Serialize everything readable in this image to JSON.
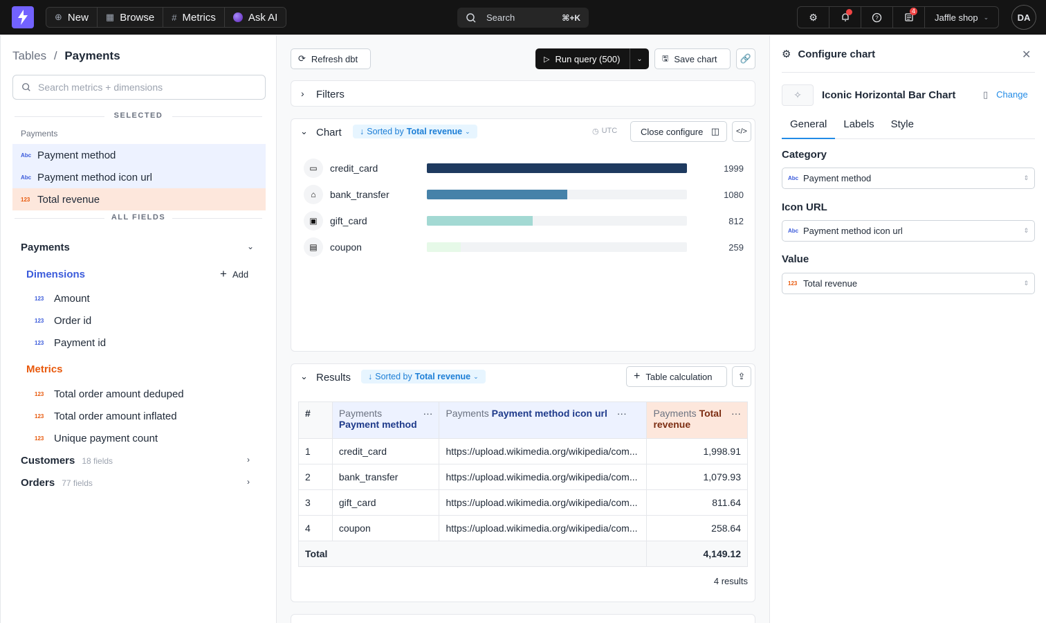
{
  "topnav": {
    "new_label": "New",
    "browse_label": "Browse",
    "metrics_label": "Metrics",
    "askai_label": "Ask AI",
    "search_placeholder": "Search",
    "search_shortcut": "⌘+K",
    "notifications_count": "4",
    "project_name": "Jaffle shop",
    "avatar_initials": "DA"
  },
  "sidebar": {
    "breadcrumb_parent": "Tables",
    "breadcrumb_sep": "/",
    "breadcrumb_current": "Payments",
    "search_placeholder": "Search metrics + dimensions",
    "selected_heading": "SELECTED",
    "selected_group": "Payments",
    "selected_items": [
      {
        "label": "Payment method",
        "type_tag": "Abc"
      },
      {
        "label": "Payment method icon url",
        "type_tag": "Abc"
      },
      {
        "label": "Total revenue",
        "type_tag": "123"
      }
    ],
    "all_fields_heading": "ALL FIELDS",
    "table_name": "Payments",
    "dimensions_heading": "Dimensions",
    "add_label": "Add",
    "dimensions": [
      "Amount",
      "Order id",
      "Payment id"
    ],
    "metrics_heading": "Metrics",
    "metrics": [
      "Total order amount deduped",
      "Total order amount inflated",
      "Unique payment count"
    ],
    "other_tables": [
      {
        "name": "Customers",
        "count": "18 fields"
      },
      {
        "name": "Orders",
        "count": "77 fields"
      }
    ]
  },
  "toolbar": {
    "refresh_label": "Refresh dbt",
    "run_label": "Run query (500)",
    "save_label": "Save chart"
  },
  "filters": {
    "title": "Filters"
  },
  "chart_card": {
    "title": "Chart",
    "sort_prefix": "Sorted by",
    "sort_field": "Total revenue",
    "timezone": "UTC",
    "close_configure_label": "Close configure"
  },
  "chart_data": {
    "type": "bar",
    "orientation": "horizontal",
    "categories": [
      "credit_card",
      "bank_transfer",
      "gift_card",
      "coupon"
    ],
    "values": [
      1999,
      1080,
      812,
      259
    ],
    "value_labels": [
      "1999",
      "1080",
      "812",
      "259"
    ],
    "xlim": [
      0,
      1999
    ],
    "colors": [
      "#1e3a5f",
      "#4682a9",
      "#a3d9d3",
      "#e6f9e8"
    ],
    "grid": false
  },
  "results": {
    "title": "Results",
    "sort_prefix": "Sorted by",
    "sort_field": "Total revenue",
    "table_calc_label": "Table calculation",
    "columns": [
      {
        "group": "#",
        "name": ""
      },
      {
        "group": "Payments",
        "name": "Payment method"
      },
      {
        "group": "Payments",
        "name": "Payment method icon url"
      },
      {
        "group": "Payments",
        "name": "Total revenue"
      }
    ],
    "rows": [
      {
        "idx": "1",
        "method": "credit_card",
        "url": "https://upload.wikimedia.org/wikipedia/com...",
        "revenue": "1,998.91"
      },
      {
        "idx": "2",
        "method": "bank_transfer",
        "url": "https://upload.wikimedia.org/wikipedia/com...",
        "revenue": "1,079.93"
      },
      {
        "idx": "3",
        "method": "gift_card",
        "url": "https://upload.wikimedia.org/wikipedia/com...",
        "revenue": "811.64"
      },
      {
        "idx": "4",
        "method": "coupon",
        "url": "https://upload.wikimedia.org/wikipedia/com...",
        "revenue": "258.64"
      }
    ],
    "total_label": "Total",
    "total_value": "4,149.12",
    "count_label": "4 results"
  },
  "config": {
    "title": "Configure chart",
    "chart_type": "Iconic Horizontal Bar Chart",
    "change_label": "Change",
    "tabs": [
      "General",
      "Labels",
      "Style"
    ],
    "category_label": "Category",
    "category_value": "Payment method",
    "icon_url_label": "Icon URL",
    "icon_url_value": "Payment method icon url",
    "value_label": "Value",
    "value_value": "Total revenue"
  },
  "colors": {
    "accent": "#7262ff",
    "dimension": "#3b5bdb",
    "metric": "#e8590c",
    "selected_dim_bg": "#edf2ff",
    "selected_metric_bg": "#fde7dc"
  }
}
